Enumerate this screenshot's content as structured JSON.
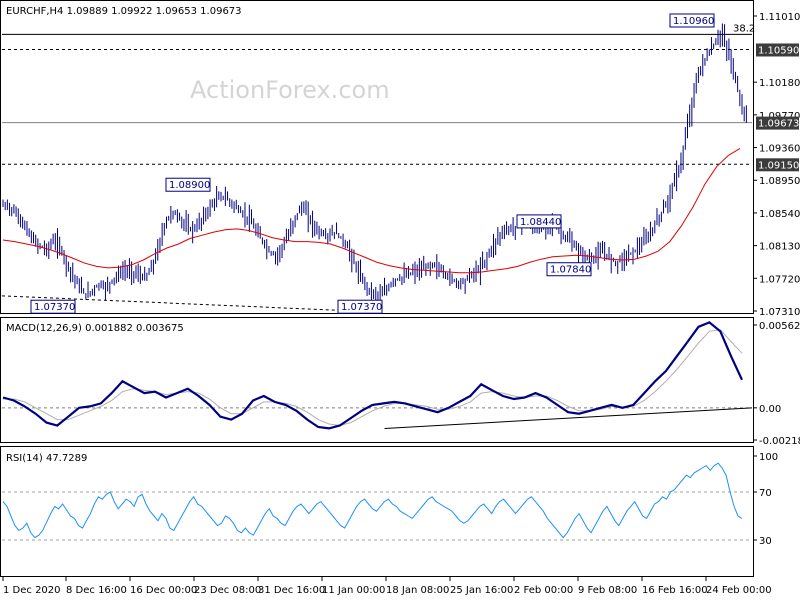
{
  "header": {
    "text": "EURCHF,H4  1.09889 1.09922 1.09653 1.09673"
  },
  "watermark": "ActionForex.com",
  "colors": {
    "bars": "#000080",
    "ma": "#e00000",
    "macd": "#000080",
    "signal": "#b0b0b0",
    "rsi": "#1e90ff",
    "grid": "#000000",
    "labelBox": "#000080"
  },
  "chart_data": [
    {
      "type": "line",
      "title": "EURCHF,H4",
      "ohlc": {
        "open": "1.09889",
        "high": "1.09922",
        "low": "1.09653",
        "close": "1.09673"
      },
      "y_ticks": [
        "1.11010",
        "1.10590",
        "1.10180",
        "1.09770",
        "1.09673",
        "1.09360",
        "1.09150",
        "1.08950",
        "1.08540",
        "1.08130",
        "1.07720",
        "1.07310"
      ],
      "ylim": [
        1.0731,
        1.1101
      ],
      "price_labels": [
        {
          "text": "1.10960",
          "price": 1.1096
        },
        {
          "text": "1.08900",
          "price": 1.089
        },
        {
          "text": "1.08440",
          "price": 1.0844
        },
        {
          "text": "1.07840",
          "price": 1.0784
        },
        {
          "text": "1.07370",
          "price": 1.0737
        },
        {
          "text": "1.07370",
          "price": 1.0737
        }
      ],
      "fib_label": "38.2",
      "highlight_levels": [
        {
          "text": "1.10590",
          "price": 1.1059
        },
        {
          "text": "1.09673",
          "price": 1.09673
        },
        {
          "text": "1.09150",
          "price": 1.0915
        }
      ],
      "dashed_levels": [
        1.1059,
        1.0915
      ],
      "resistance_level": 1.1078,
      "trendline": [
        [
          0,
          1.075
        ],
        [
          0.47,
          1.0731
        ]
      ],
      "series": [
        {
          "values": [
            1.0863,
            1.0855,
            1.0845,
            1.083,
            1.0818,
            1.0812,
            1.0808,
            1.082,
            1.081,
            1.079,
            1.0775,
            1.076,
            1.075,
            1.0758,
            1.0765,
            1.076,
            1.077,
            1.0778,
            1.0782,
            1.078,
            1.0776,
            1.0772,
            1.0785,
            1.081,
            1.084,
            1.0855,
            1.085,
            1.084,
            1.0832,
            1.0838,
            1.085,
            1.0862,
            1.0872,
            1.0875,
            1.0868,
            1.086,
            1.0852,
            1.0845,
            1.083,
            1.0818,
            1.0805,
            1.08,
            1.0812,
            1.0828,
            1.085,
            1.0862,
            1.0848,
            1.0835,
            1.0828,
            1.0825,
            1.083,
            1.0822,
            1.081,
            1.079,
            1.0772,
            1.076,
            1.0752,
            1.075,
            1.0758,
            1.077,
            1.0772,
            1.0776,
            1.078,
            1.0782,
            1.0785,
            1.079,
            1.0783,
            1.0776,
            1.077,
            1.0766,
            1.077,
            1.0778,
            1.0782,
            1.0795,
            1.081,
            1.0825,
            1.0832,
            1.0835,
            1.0838,
            1.0842,
            1.0838,
            1.083,
            1.084,
            1.0842,
            1.0835,
            1.0825,
            1.0818,
            1.0808,
            1.08,
            1.0796,
            1.08,
            1.0805,
            1.0798,
            1.0792,
            1.0797,
            1.0802,
            1.0808,
            1.0815,
            1.0825,
            1.084,
            1.0855,
            1.0872,
            1.0895,
            1.092,
            1.0965,
            1.101,
            1.1038,
            1.1052,
            1.1065,
            1.108,
            1.106,
            1.103,
            1.0995,
            1.0967
          ]
        },
        {
          "values": [
            1.082,
            1.0818,
            1.0815,
            1.0812,
            1.0808,
            1.0803,
            1.0797,
            1.0791,
            1.0787,
            1.0785,
            1.0786,
            1.0789,
            1.0795,
            1.0803,
            1.081,
            1.0815,
            1.0822,
            1.0826,
            1.083,
            1.0833,
            1.0834,
            1.0832,
            1.0828,
            1.0823,
            1.082,
            1.0818,
            1.0818,
            1.0817,
            1.0815,
            1.081,
            1.0804,
            1.0798,
            1.0792,
            1.0788,
            1.0785,
            1.0783,
            1.0782,
            1.0781,
            1.078,
            1.0779,
            1.0779,
            1.078,
            1.0782,
            1.0784,
            1.0787,
            1.0792,
            1.0796,
            1.0799,
            1.08,
            1.0801,
            1.08,
            1.0798,
            1.0796,
            1.0795,
            1.0796,
            1.08,
            1.0806,
            1.0818,
            1.0838,
            1.0862,
            1.089,
            1.0912,
            1.0926,
            1.0935
          ]
        }
      ],
      "x_ticks": [
        "1 Dec 2020",
        "8 Dec 16:00",
        "16 Dec 00:00",
        "23 Dec 08:00",
        "31 Dec 16:00",
        "11 Jan 00:00",
        "18 Jan 08:00",
        "25 Jan 16:00",
        "2 Feb 00:00",
        "9 Feb 08:00",
        "16 Feb 16:00",
        "24 Feb 00:00"
      ]
    },
    {
      "type": "line",
      "title": "MACD(12,26,9) 0.001882 0.003675",
      "y_ticks": [
        "0.005625",
        "0.00",
        "-0.002185"
      ],
      "ylim": [
        -0.002185,
        0.005625
      ],
      "series": [
        {
          "values": [
            0.0007,
            0.0005,
            0.0001,
            -0.0004,
            -0.001,
            -0.0012,
            -0.0006,
            0.0,
            0.0001,
            0.0003,
            0.001,
            0.0018,
            0.0014,
            0.001,
            0.0011,
            0.0007,
            0.001,
            0.0013,
            0.0008,
            0.0002,
            -0.0006,
            -0.0008,
            -0.0004,
            0.0005,
            0.0008,
            0.0004,
            0.0002,
            -0.0002,
            -0.0008,
            -0.0013,
            -0.0014,
            -0.0012,
            -0.0007,
            -0.0002,
            0.0002,
            0.0003,
            0.0004,
            0.0003,
            0.0001,
            -0.0001,
            -0.0003,
            0.0,
            0.0004,
            0.0008,
            0.0016,
            0.0012,
            0.0008,
            0.0006,
            0.0007,
            0.001,
            0.0007,
            0.0002,
            -0.0003,
            -0.0004,
            -0.0002,
            0.0,
            0.0002,
            0.0,
            0.0002,
            0.001,
            0.0018,
            0.0025,
            0.0035,
            0.0045,
            0.0055,
            0.0058,
            0.0052,
            0.0035,
            0.0019
          ]
        },
        {
          "values": [
            0.0006,
            0.0006,
            0.0004,
            0.0,
            -0.0004,
            -0.0008,
            -0.0008,
            -0.0005,
            -0.0002,
            0.0001,
            0.0005,
            0.0011,
            0.0013,
            0.0012,
            0.0011,
            0.0009,
            0.001,
            0.0011,
            0.001,
            0.0006,
            0.0,
            -0.0004,
            -0.0004,
            0.0,
            0.0004,
            0.0004,
            0.0003,
            0.0001,
            -0.0003,
            -0.0008,
            -0.0011,
            -0.0012,
            -0.001,
            -0.0006,
            -0.0002,
            0.0001,
            0.0003,
            0.0003,
            0.0002,
            0.0001,
            -0.0001,
            -0.0001,
            0.0001,
            0.0004,
            0.001,
            0.0011,
            0.001,
            0.0008,
            0.0007,
            0.0008,
            0.0008,
            0.0005,
            0.0001,
            -0.0002,
            -0.0002,
            -0.0001,
            0.0001,
            0.0,
            0.0001,
            0.0005,
            0.0011,
            0.0018,
            0.0026,
            0.0035,
            0.0044,
            0.0052,
            0.0053,
            0.0045,
            0.0037
          ]
        }
      ],
      "trendline": [
        [
          0.51,
          -0.0014
        ],
        [
          1.0,
          0.0
        ]
      ]
    },
    {
      "type": "line",
      "title": "RSI(14) 47.7289",
      "y_ticks": [
        "100",
        "70",
        "30"
      ],
      "ylim": [
        0,
        100
      ],
      "levels": [
        70,
        30
      ],
      "series": [
        {
          "values": [
            62,
            58,
            50,
            42,
            38,
            40,
            44,
            36,
            32,
            34,
            38,
            45,
            52,
            58,
            56,
            60,
            55,
            50,
            48,
            42,
            40,
            46,
            52,
            60,
            66,
            64,
            68,
            70,
            62,
            56,
            60,
            64,
            62,
            58,
            66,
            68,
            60,
            54,
            50,
            46,
            52,
            48,
            40,
            38,
            44,
            50,
            56,
            62,
            66,
            60,
            58,
            54,
            50,
            46,
            42,
            44,
            50,
            48,
            44,
            38,
            36,
            40,
            36,
            34,
            40,
            46,
            52,
            56,
            50,
            48,
            44,
            42,
            48,
            54,
            58,
            60,
            56,
            52,
            56,
            60,
            62,
            58,
            54,
            50,
            46,
            42,
            40,
            46,
            52,
            58,
            62,
            64,
            60,
            56,
            54,
            58,
            62,
            64,
            60,
            58,
            54,
            52,
            50,
            48,
            52,
            56,
            60,
            64,
            66,
            62,
            60,
            58,
            56,
            54,
            50,
            46,
            44,
            46,
            50,
            54,
            58,
            60,
            56,
            52,
            58,
            62,
            64,
            60,
            56,
            52,
            56,
            60,
            64,
            66,
            62,
            58,
            54,
            48,
            44,
            40,
            36,
            32,
            36,
            42,
            48,
            52,
            46,
            40,
            36,
            42,
            48,
            54,
            58,
            52,
            46,
            42,
            48,
            54,
            58,
            62,
            56,
            50,
            48,
            54,
            60,
            62,
            66,
            64,
            70,
            72,
            76,
            80,
            84,
            82,
            86,
            88,
            90,
            92,
            88,
            92,
            94,
            90,
            84,
            70,
            58,
            50,
            48
          ]
        }
      ]
    }
  ]
}
